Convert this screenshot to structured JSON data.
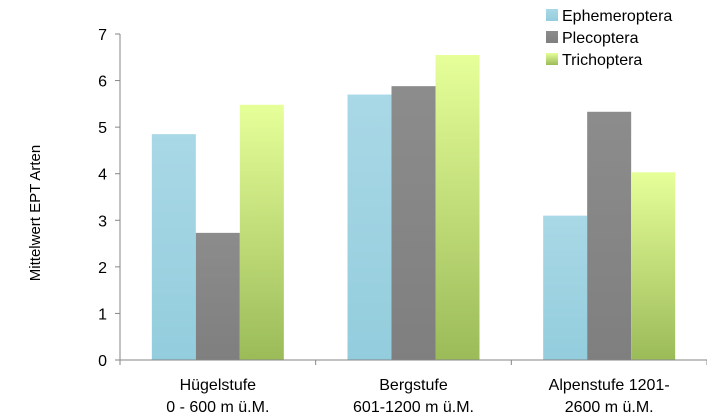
{
  "chart_data": {
    "type": "bar",
    "ylabel": "Mittelwert EPT Arten",
    "xlabel": "",
    "ylim": [
      0,
      7
    ],
    "yticks": [
      0,
      1,
      2,
      3,
      4,
      5,
      6,
      7
    ],
    "grid": false,
    "legend_position": "top-right",
    "categories": [
      [
        "Hügelstufe",
        "0 - 600 m ü.M."
      ],
      [
        "Bergstufe",
        "601-1200 m ü.M."
      ],
      [
        "Alpenstufe 1201-",
        "2600 m ü.M."
      ]
    ],
    "series": [
      {
        "name": "Ephemeroptera",
        "values": [
          4.85,
          5.7,
          3.1
        ],
        "color": "#93cddd",
        "color_light": "#a9d8e6"
      },
      {
        "name": "Plecoptera",
        "values": [
          2.73,
          5.88,
          5.33
        ],
        "color": "#7f7f7f",
        "color_light": "#8c8c8c"
      },
      {
        "name": "Trichoptera",
        "values": [
          5.48,
          6.55,
          4.03
        ],
        "color_top": "#e6ff99",
        "color": "#9bbb59"
      }
    ]
  }
}
